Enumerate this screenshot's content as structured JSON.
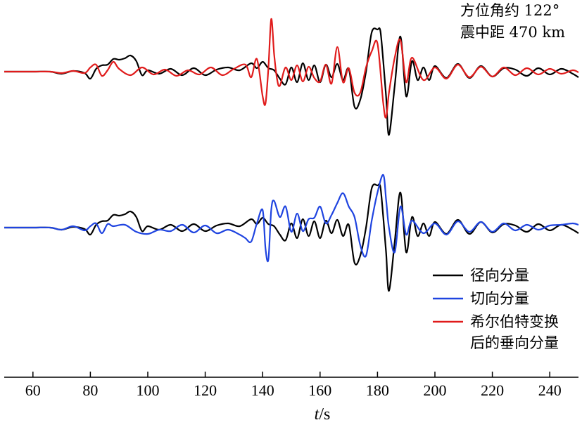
{
  "chart_data": {
    "type": "line",
    "xlabel_italic": "t",
    "xlabel_unit": "/s",
    "xlim": [
      50,
      250
    ],
    "xticks": [
      60,
      80,
      100,
      120,
      140,
      160,
      180,
      200,
      220,
      240
    ],
    "annotation": [
      "方位角约 122°",
      "震中距 470 km"
    ],
    "legend": [
      {
        "label": "径向分量",
        "color": "#000000"
      },
      {
        "label": "切向分量",
        "color": "#1f44e0"
      },
      {
        "label": "希尔伯特变换",
        "label2": "后的垂向分量",
        "color": "#e01b1b"
      }
    ],
    "panels": [
      {
        "name": "top",
        "series": [
          {
            "label": "径向分量",
            "color": "#000000",
            "x": [
              50,
              60,
              66,
              70,
              74,
              78,
              80,
              82,
              84,
              86,
              88,
              90,
              92,
              94,
              96,
              98,
              100,
              104,
              108,
              112,
              116,
              120,
              124,
              128,
              132,
              136,
              138,
              140,
              142,
              144,
              146,
              148,
              150,
              152,
              154,
              156,
              158,
              160,
              162,
              164,
              166,
              168,
              170,
              172,
              174,
              176,
              178,
              180,
              181,
              182,
              183,
              184,
              186,
              188,
              190,
              192,
              194,
              196,
              198,
              200,
              204,
              208,
              212,
              216,
              220,
              224,
              228,
              232,
              236,
              240,
              244,
              248,
              250
            ],
            "y": [
              0,
              0,
              0,
              -0.3,
              0.1,
              -0.2,
              -1.0,
              0.4,
              0.9,
              1.0,
              1.8,
              1.7,
              1.9,
              2.3,
              1.5,
              -0.5,
              0.2,
              -0.3,
              0.4,
              -0.5,
              0.5,
              -0.5,
              0.3,
              0.6,
              0.2,
              1.2,
              0.5,
              1.4,
              0.5,
              0.2,
              -1.0,
              -1.8,
              0.6,
              -1.5,
              1.2,
              -1.2,
              0.9,
              -1.5,
              1.0,
              -0.8,
              1.1,
              -1.2,
              0.4,
              -5.0,
              -4.0,
              0,
              5.6,
              6.0,
              5.8,
              1.5,
              -3.5,
              -9.0,
              -2.0,
              5.0,
              -3.5,
              1.5,
              -1.2,
              0.6,
              -1.2,
              0.8,
              -0.9,
              1.1,
              -0.9,
              0.8,
              -0.7,
              0.5,
              0.3,
              -0.6,
              0.5,
              -0.4,
              0.4,
              -0.3,
              -0.8
            ]
          },
          {
            "label": "希尔伯特变换后的垂向分量",
            "color": "#e01b1b",
            "x": [
              50,
              60,
              66,
              70,
              74,
              78,
              80,
              82,
              84,
              86,
              88,
              90,
              94,
              98,
              102,
              106,
              110,
              114,
              118,
              122,
              126,
              130,
              134,
              136,
              138,
              140,
              141,
              142,
              143,
              144,
              145,
              146,
              148,
              150,
              152,
              154,
              156,
              158,
              160,
              162,
              164,
              166,
              168,
              170,
              172,
              174,
              176,
              178,
              180,
              182,
              183,
              184,
              186,
              188,
              190,
              192,
              196,
              200,
              204,
              208,
              212,
              216,
              220,
              224,
              228,
              232,
              236,
              240,
              244,
              248,
              250
            ],
            "y": [
              0,
              0,
              0,
              -0.2,
              0.1,
              -0.2,
              0.6,
              1.0,
              -0.6,
              0.2,
              1.4,
              0.4,
              -0.5,
              0.6,
              -0.4,
              0.3,
              -0.6,
              0.2,
              -0.4,
              0.6,
              -0.5,
              0.4,
              1.0,
              -0.8,
              1.8,
              -3.5,
              -4.5,
              0.5,
              7.5,
              2.5,
              -1.0,
              -2.0,
              0.6,
              -1.2,
              0.9,
              -1.4,
              0.7,
              -0.9,
              -1.4,
              1.0,
              -1.7,
              3.5,
              -1.5,
              0.5,
              -3.0,
              -3.0,
              0.6,
              2.9,
              4.0,
              -4.5,
              -6.5,
              -3.0,
              2.0,
              4.5,
              -1.5,
              2.0,
              -1.2,
              0.6,
              -1.0,
              1.0,
              -0.8,
              0.7,
              -0.7,
              0.6,
              -0.5,
              0.5,
              -0.4,
              0.4,
              -0.3,
              0.2,
              -0.1
            ]
          }
        ]
      },
      {
        "name": "bottom",
        "series": [
          {
            "label": "径向分量",
            "color": "#000000",
            "x": [
              50,
              60,
              66,
              70,
              74,
              78,
              80,
              82,
              84,
              86,
              88,
              90,
              92,
              94,
              96,
              98,
              100,
              104,
              108,
              112,
              116,
              120,
              124,
              128,
              132,
              136,
              138,
              140,
              142,
              144,
              146,
              148,
              150,
              152,
              154,
              156,
              158,
              160,
              162,
              164,
              166,
              168,
              170,
              172,
              174,
              176,
              178,
              180,
              181,
              182,
              183,
              184,
              186,
              188,
              190,
              192,
              194,
              196,
              198,
              200,
              204,
              208,
              212,
              216,
              220,
              224,
              228,
              232,
              236,
              240,
              244,
              248,
              250
            ],
            "y": [
              0,
              0,
              0,
              -0.3,
              0.1,
              -0.2,
              -1.0,
              0.4,
              0.9,
              1.0,
              1.8,
              1.7,
              1.9,
              2.3,
              1.5,
              -0.5,
              0.2,
              -0.3,
              0.4,
              -0.5,
              0.5,
              -0.5,
              0.3,
              0.6,
              0.2,
              1.2,
              0.5,
              1.4,
              0.5,
              0.2,
              -1.0,
              -1.8,
              0.6,
              -1.5,
              1.2,
              -1.2,
              0.9,
              -1.5,
              1.0,
              -0.8,
              1.1,
              -1.2,
              0.4,
              -5.0,
              -4.0,
              0,
              5.6,
              6.0,
              5.8,
              1.5,
              -3.5,
              -9.0,
              -2.0,
              5.0,
              -3.5,
              1.5,
              -1.2,
              0.6,
              -1.2,
              0.8,
              -0.9,
              1.1,
              -0.9,
              0.8,
              -0.7,
              0.5,
              0.3,
              -0.6,
              0.5,
              -0.4,
              0.4,
              -0.3,
              -0.8
            ]
          },
          {
            "label": "切向分量",
            "color": "#1f44e0",
            "x": [
              50,
              60,
              66,
              70,
              74,
              78,
              80,
              82,
              84,
              86,
              88,
              92,
              96,
              100,
              104,
              108,
              112,
              116,
              120,
              124,
              128,
              132,
              134,
              136,
              138,
              140,
              141,
              142,
              143,
              144,
              146,
              148,
              150,
              152,
              154,
              156,
              158,
              160,
              162,
              164,
              166,
              168,
              170,
              172,
              174,
              176,
              178,
              180,
              182,
              183,
              184,
              186,
              188,
              190,
              192,
              196,
              200,
              204,
              208,
              212,
              216,
              220,
              224,
              228,
              232,
              236,
              240,
              244,
              248,
              250
            ],
            "y": [
              0,
              0,
              0,
              -0.3,
              0.2,
              -0.4,
              0.2,
              0.6,
              -0.8,
              0.5,
              0.2,
              0.4,
              -0.6,
              -0.9,
              -0.3,
              -0.5,
              0.4,
              -0.7,
              0.3,
              -0.8,
              -0.3,
              -1.0,
              -1.5,
              -2.0,
              0.6,
              2.5,
              -3.0,
              -4.5,
              2.5,
              3.8,
              1.5,
              3.0,
              -0.6,
              2.0,
              -0.5,
              1.2,
              1.4,
              3.0,
              0.6,
              1.8,
              3.5,
              4.9,
              3.0,
              1.5,
              -2.5,
              -4.0,
              1.0,
              5.0,
              7.5,
              4.0,
              0,
              -3.5,
              3.0,
              -1.0,
              1.0,
              -0.8,
              0.6,
              -1.0,
              0.9,
              -0.6,
              0.8,
              -0.6,
              0.6,
              -0.4,
              0.4,
              -0.3,
              0.3,
              0.4,
              0.6,
              0.4
            ]
          }
        ]
      }
    ]
  }
}
